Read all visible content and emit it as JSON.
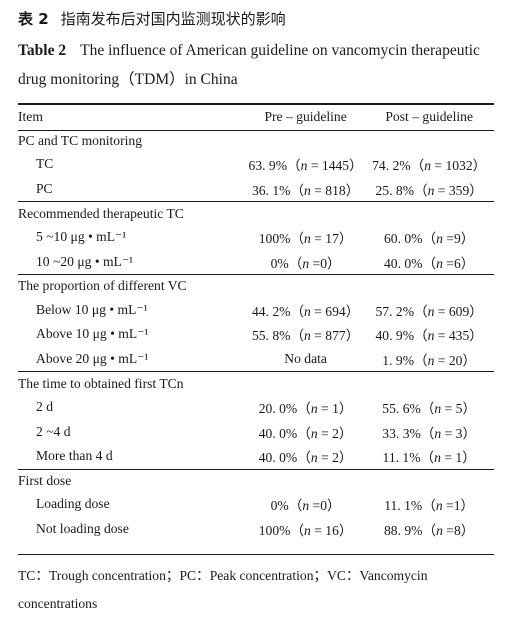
{
  "caption": {
    "cn_label": "表 2",
    "cn_title": "指南发布后对国内监测现状的影响",
    "en_label": "Table 2",
    "en_title": "The influence of American guideline on vancomycin therapeutic drug monitoring（TDM）in China"
  },
  "table": {
    "headers": [
      "Item",
      "Pre – guideline",
      "Post – guideline"
    ],
    "sections": [
      {
        "title": "PC and TC monitoring",
        "rows": [
          {
            "item": "TC",
            "pre": "63. 9%（n = 1445）",
            "post": "74. 2%（n = 1032）"
          },
          {
            "item": "PC",
            "pre": "36. 1%（n = 818）",
            "post": "25. 8%（n = 359）"
          }
        ]
      },
      {
        "title": "Recommended therapeutic TC",
        "rows": [
          {
            "item": "5 ~10 μg • mL⁻¹",
            "pre": "100%（n = 17）",
            "post": "60. 0%（n =9）"
          },
          {
            "item": "10 ~20 μg • mL⁻¹",
            "pre": "0%（n =0）",
            "post": "40. 0%（n =6）"
          }
        ]
      },
      {
        "title": "The proportion of different VC",
        "rows": [
          {
            "item": "Below 10 μg • mL⁻¹",
            "pre": "44. 2%（n = 694）",
            "post": "57. 2%（n = 609）"
          },
          {
            "item": "Above 10 μg • mL⁻¹",
            "pre": "55. 8%（n = 877）",
            "post": "40. 9%（n = 435）"
          },
          {
            "item": "Above 20 μg • mL⁻¹",
            "pre": "No data",
            "post": "1. 9%（n = 20）"
          }
        ]
      },
      {
        "title": "The time to obtained first TCn",
        "rows": [
          {
            "item": "2 d",
            "pre": "20. 0%（n = 1）",
            "post": "55. 6%（n = 5）"
          },
          {
            "item": "2 ~4 d",
            "pre": "40. 0%（n = 2）",
            "post": "33. 3%（n = 3）"
          },
          {
            "item": "More than 4 d",
            "pre": "40. 0%（n = 2）",
            "post": "11. 1%（n = 1）"
          }
        ]
      },
      {
        "title": "First dose",
        "rows": [
          {
            "item": "Loading dose",
            "pre": "0%（n =0）",
            "post": "11. 1%（n =1）"
          },
          {
            "item": "Not loading dose",
            "pre": "100%（n = 16）",
            "post": "88. 9%（n =8）"
          }
        ]
      }
    ]
  },
  "footnote": "TC：Trough concentration；PC：Peak concentration；VC：Vancomycin concentrations"
}
